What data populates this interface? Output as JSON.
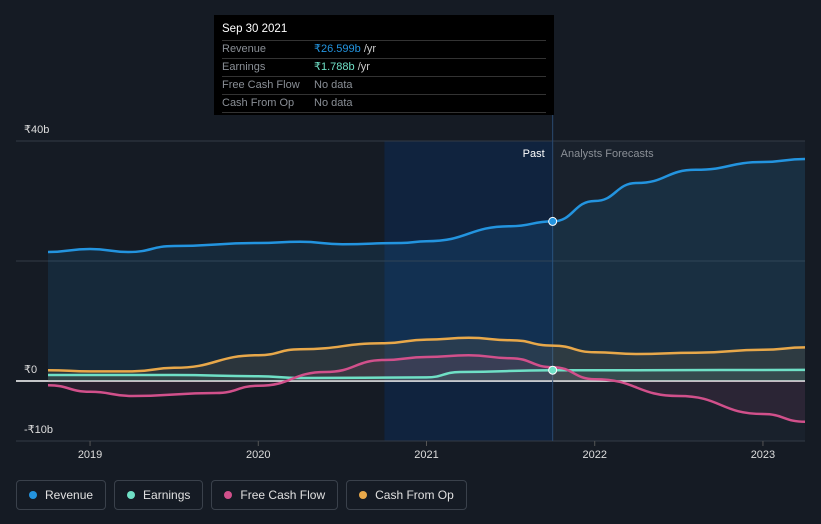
{
  "tooltip": {
    "date": "Sep 30 2021",
    "rows": [
      {
        "label": "Revenue",
        "value": "₹26.599b",
        "unit": " /yr",
        "color": "#2394df"
      },
      {
        "label": "Earnings",
        "value": "₹1.788b",
        "unit": " /yr",
        "color": "#6fe0c6"
      },
      {
        "label": "Free Cash Flow",
        "value": "No data",
        "unit": "",
        "color": "#8a8f96"
      },
      {
        "label": "Cash From Op",
        "value": "No data",
        "unit": "",
        "color": "#8a8f96"
      }
    ]
  },
  "labels": {
    "past": "Past",
    "forecast": "Analysts Forecasts"
  },
  "chart_data": {
    "type": "line",
    "ylim": [
      -10,
      40
    ],
    "xlim": [
      2018.75,
      2023.25
    ],
    "past_end": 2021.75,
    "highlight_start": 2020.75,
    "yticks": [
      {
        "v": 40,
        "label": "₹40b"
      },
      {
        "v": 20,
        "label": ""
      },
      {
        "v": 0,
        "label": "₹0"
      },
      {
        "v": -10,
        "label": "-₹10b"
      }
    ],
    "xticks": [
      {
        "v": 2019,
        "label": "2019"
      },
      {
        "v": 2020,
        "label": "2020"
      },
      {
        "v": 2021,
        "label": "2021"
      },
      {
        "v": 2022,
        "label": "2022"
      },
      {
        "v": 2023,
        "label": "2023"
      }
    ],
    "series": [
      {
        "name": "Revenue",
        "color": "#2394df",
        "points": [
          [
            2018.75,
            21.5
          ],
          [
            2019,
            22
          ],
          [
            2019.23,
            21.5
          ],
          [
            2019.5,
            22.5
          ],
          [
            2020,
            23
          ],
          [
            2020.25,
            23.2
          ],
          [
            2020.5,
            22.8
          ],
          [
            2020.85,
            23
          ],
          [
            2021,
            23.3
          ],
          [
            2021.5,
            25.8
          ],
          [
            2021.75,
            26.6
          ],
          [
            2022,
            30
          ],
          [
            2022.25,
            33
          ],
          [
            2022.6,
            35.2
          ],
          [
            2023,
            36.5
          ],
          [
            2023.25,
            37
          ]
        ]
      },
      {
        "name": "Earnings",
        "color": "#6fe0c6",
        "points": [
          [
            2018.75,
            1.0
          ],
          [
            2019,
            1.0
          ],
          [
            2019.5,
            1.0
          ],
          [
            2020,
            0.8
          ],
          [
            2020.25,
            0.5
          ],
          [
            2021,
            0.6
          ],
          [
            2021.2,
            1.5
          ],
          [
            2021.75,
            1.8
          ],
          [
            2022.25,
            1.8
          ],
          [
            2023.25,
            1.85
          ]
        ]
      },
      {
        "name": "Free Cash Flow",
        "color": "#d1508b",
        "points": [
          [
            2018.75,
            -0.7
          ],
          [
            2019,
            -1.8
          ],
          [
            2019.25,
            -2.5
          ],
          [
            2019.75,
            -2.0
          ],
          [
            2020,
            -0.8
          ],
          [
            2020.4,
            1.5
          ],
          [
            2020.75,
            3.5
          ],
          [
            2021,
            4.0
          ],
          [
            2021.25,
            4.3
          ],
          [
            2021.5,
            3.8
          ],
          [
            2021.75,
            2.3
          ],
          [
            2022,
            0.3
          ],
          [
            2022.5,
            -2.5
          ],
          [
            2023,
            -5.5
          ],
          [
            2023.25,
            -6.8
          ]
        ]
      },
      {
        "name": "Cash From Op",
        "color": "#e8a84a",
        "points": [
          [
            2018.75,
            1.8
          ],
          [
            2019,
            1.6
          ],
          [
            2019.25,
            1.6
          ],
          [
            2019.5,
            2.2
          ],
          [
            2020,
            4.3
          ],
          [
            2020.25,
            5.3
          ],
          [
            2020.75,
            6.3
          ],
          [
            2021,
            6.9
          ],
          [
            2021.25,
            7.2
          ],
          [
            2021.5,
            6.8
          ],
          [
            2021.75,
            5.9
          ],
          [
            2022,
            4.8
          ],
          [
            2022.25,
            4.5
          ],
          [
            2022.6,
            4.7
          ],
          [
            2023,
            5.2
          ],
          [
            2023.25,
            5.6
          ]
        ]
      }
    ]
  }
}
